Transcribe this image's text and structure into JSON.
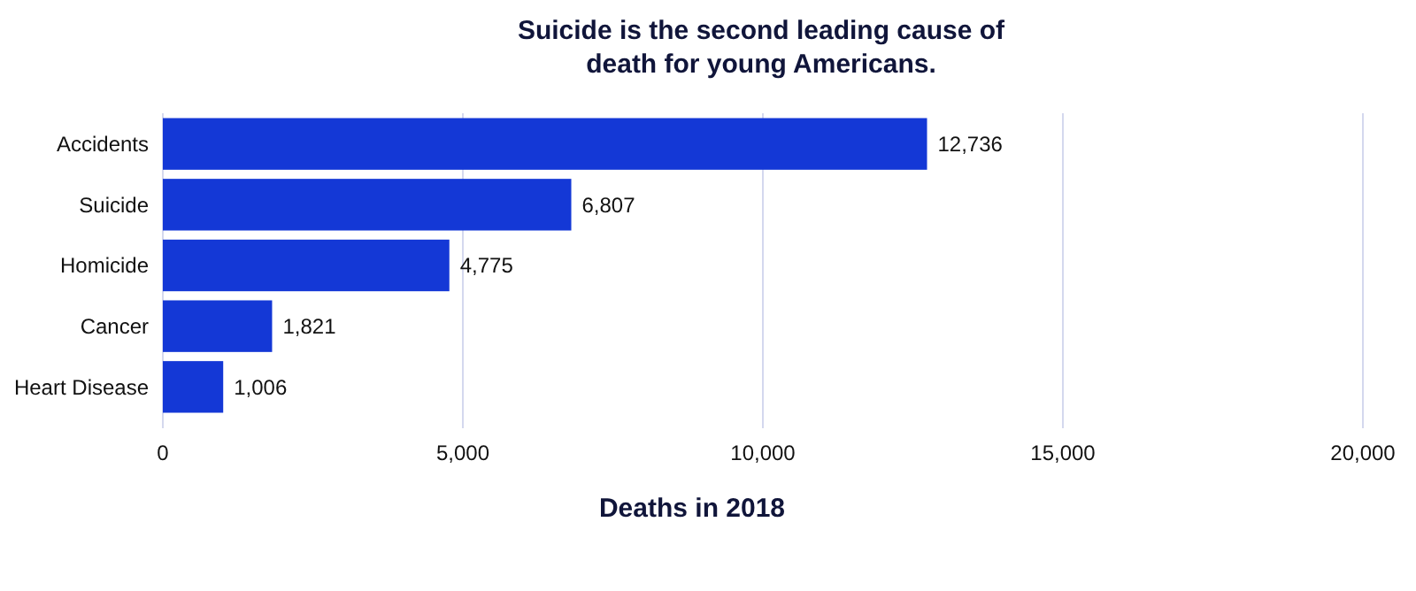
{
  "chart_data": {
    "type": "bar",
    "orientation": "horizontal",
    "title": "Suicide is the second leading cause of death for young Americans.",
    "xlabel": "Deaths in 2018",
    "categories": [
      "Accidents",
      "Suicide",
      "Homicide",
      "Cancer",
      "Heart Disease"
    ],
    "values": [
      12736,
      6807,
      4775,
      1821,
      1006
    ],
    "color": "#1438d6",
    "xlim": [
      0,
      20000
    ],
    "xticks": [
      {
        "value": 0,
        "label": "0"
      },
      {
        "value": 5000,
        "label": "5,000"
      },
      {
        "value": 10000,
        "label": "10,000"
      },
      {
        "value": 15000,
        "label": "15,000"
      },
      {
        "value": 20000,
        "label": "20,000"
      }
    ],
    "value_labels": [
      "12,736",
      "6,807",
      "4,775",
      "1,821",
      "1,006"
    ],
    "grid": "x"
  }
}
